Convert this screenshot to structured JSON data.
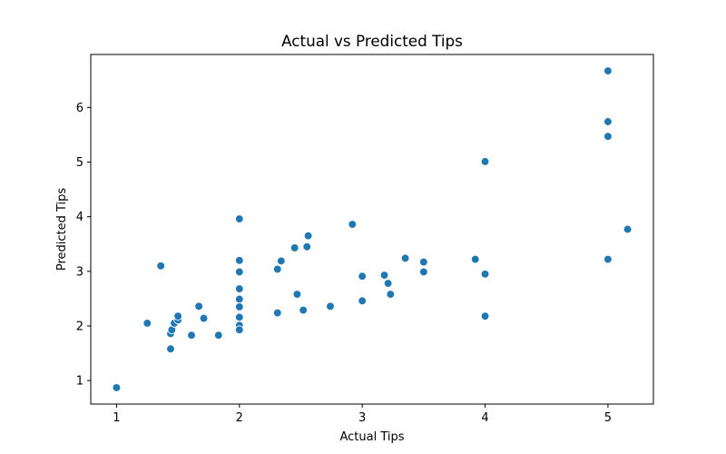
{
  "chart_data": {
    "type": "scatter",
    "title": "Actual vs Predicted Tips",
    "xlabel": "Actual Tips",
    "ylabel": "Predicted Tips",
    "xlim": [
      0.79,
      5.37
    ],
    "ylim": [
      0.57,
      6.97
    ],
    "xticks": [
      1,
      2,
      3,
      4,
      5
    ],
    "yticks": [
      1,
      2,
      3,
      4,
      5,
      6
    ],
    "grid": false,
    "point_color": "#1f77b4",
    "points": [
      [
        1.0,
        0.87
      ],
      [
        1.25,
        2.05
      ],
      [
        1.36,
        3.1
      ],
      [
        1.44,
        1.58
      ],
      [
        1.44,
        1.86
      ],
      [
        1.45,
        1.93
      ],
      [
        1.47,
        2.05
      ],
      [
        1.5,
        2.11
      ],
      [
        1.5,
        2.18
      ],
      [
        1.61,
        1.83
      ],
      [
        1.67,
        2.36
      ],
      [
        1.71,
        2.14
      ],
      [
        1.83,
        1.83
      ],
      [
        2.0,
        3.96
      ],
      [
        2.0,
        3.2
      ],
      [
        2.0,
        2.99
      ],
      [
        2.0,
        2.68
      ],
      [
        2.0,
        2.49
      ],
      [
        2.0,
        2.35
      ],
      [
        2.0,
        2.16
      ],
      [
        2.0,
        2.01
      ],
      [
        2.0,
        1.93
      ],
      [
        2.31,
        3.04
      ],
      [
        2.31,
        2.24
      ],
      [
        2.34,
        3.19
      ],
      [
        2.45,
        3.43
      ],
      [
        2.47,
        2.58
      ],
      [
        2.52,
        2.29
      ],
      [
        2.55,
        3.45
      ],
      [
        2.56,
        3.65
      ],
      [
        2.74,
        2.36
      ],
      [
        2.92,
        3.86
      ],
      [
        3.0,
        2.91
      ],
      [
        3.0,
        2.46
      ],
      [
        3.18,
        2.93
      ],
      [
        3.21,
        2.78
      ],
      [
        3.23,
        2.58
      ],
      [
        3.35,
        3.24
      ],
      [
        3.5,
        3.17
      ],
      [
        3.5,
        2.99
      ],
      [
        3.92,
        3.22
      ],
      [
        4.0,
        5.01
      ],
      [
        4.0,
        2.95
      ],
      [
        4.0,
        2.18
      ],
      [
        5.0,
        6.67
      ],
      [
        5.0,
        5.74
      ],
      [
        5.0,
        5.47
      ],
      [
        5.0,
        3.22
      ],
      [
        5.16,
        3.77
      ]
    ]
  }
}
